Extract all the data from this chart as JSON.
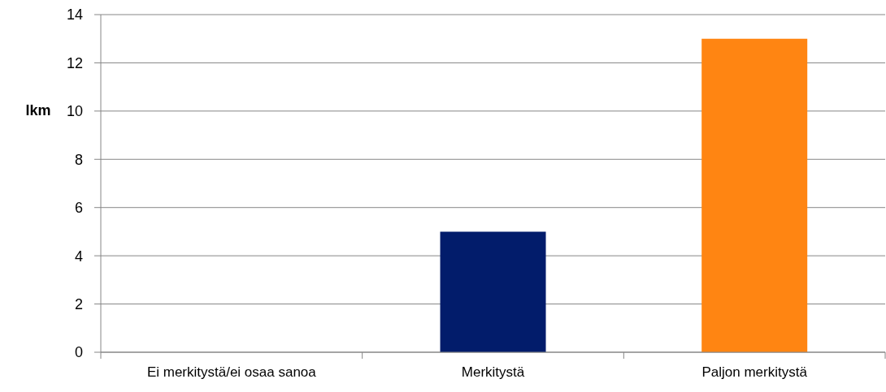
{
  "chart_data": {
    "type": "bar",
    "ylabel": "lkm",
    "categories": [
      "Ei merkitystä/ei osaa sanoa",
      "Merkitystä",
      "Paljon merkitystä"
    ],
    "values": [
      0,
      5,
      13
    ],
    "colors": [
      null,
      "#021c6b",
      "#ff8512"
    ],
    "ylim": [
      0,
      14
    ],
    "yticks": [
      0,
      2,
      4,
      6,
      8,
      10,
      12,
      14
    ],
    "grid": "y",
    "legend": false
  }
}
